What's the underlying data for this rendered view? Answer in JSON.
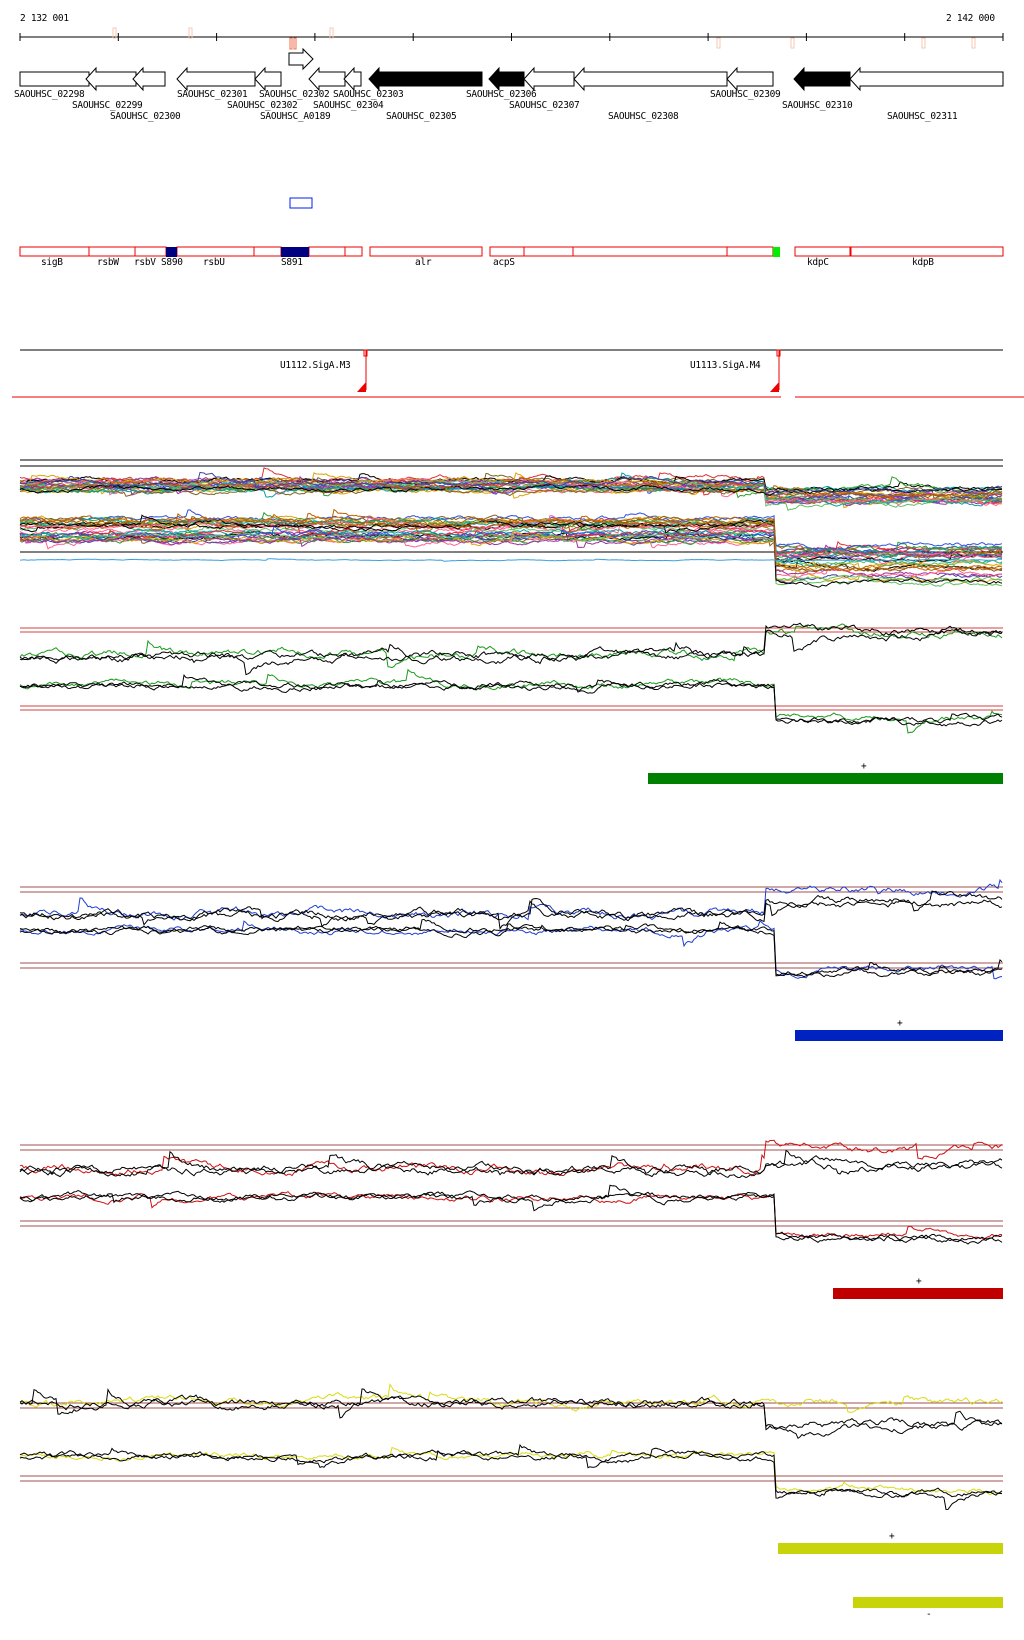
{
  "ruler": {
    "start_label": "2 132 001",
    "end_label": "2 142 000"
  },
  "genes": [
    "SAOUHSC_02298",
    "SAOUHSC_02299",
    "SAOUHSC_02300",
    "SAOUHSC_02301",
    "SAOUHSC_02302",
    "SAOUHSC_A0189",
    "SAOUHSC_02303",
    "SAOUHSC_02304",
    "SAOUHSC_02305",
    "SAOUHSC_02306",
    "SAOUHSC_02307",
    "SAOUHSC_02308",
    "SAOUHSC_02309",
    "SAOUHSC_02310",
    "SAOUHSC_02311",
    "SAOUHSC_02302"
  ],
  "annotations": [
    "sigB",
    "rsbW",
    "rsbV",
    "S890",
    "rsbU",
    "S891",
    "alr",
    "acpS",
    "kdpC",
    "kdpB"
  ],
  "promoters": [
    "U1112.SigA.M3",
    "U1113.SigA.M4"
  ],
  "segments": [
    {
      "strand": "+",
      "color": "#008000"
    },
    {
      "strand": "+",
      "color": "#0022c0"
    },
    {
      "strand": "+",
      "color": "#c00000"
    },
    {
      "strand": "+",
      "color": "#c8d40a"
    },
    {
      "strand": "-",
      "color": "#c8d40a"
    }
  ],
  "track_colors": {
    "green": "#1a9a1a",
    "blue": "#1f3fd0",
    "red": "#d01010",
    "yellow": "#d8dc10",
    "reference": "#a05050"
  }
}
